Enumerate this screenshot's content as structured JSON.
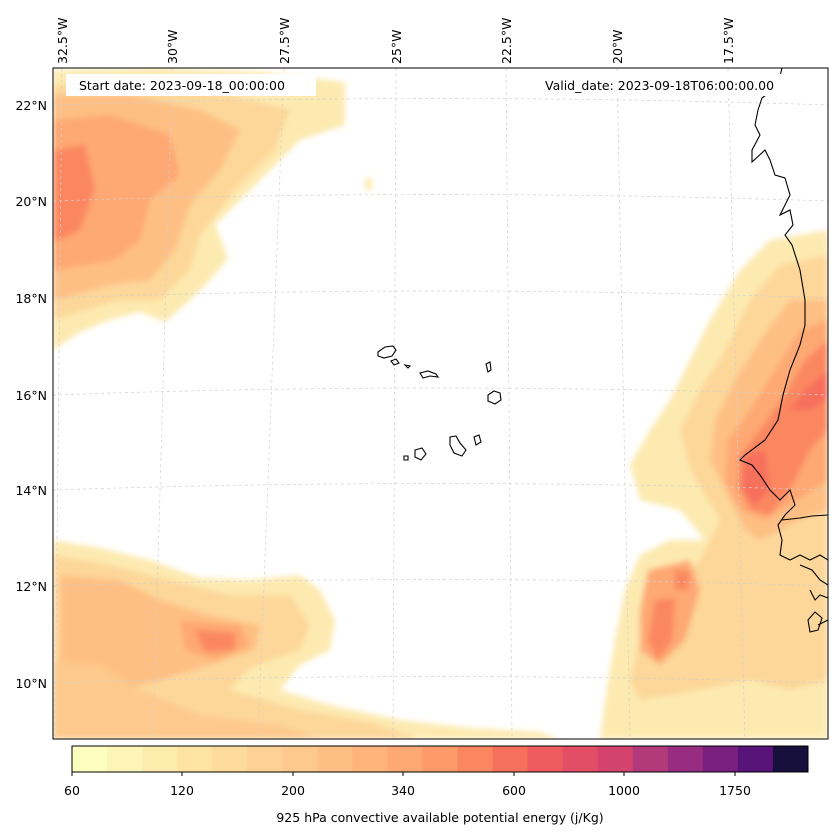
{
  "map": {
    "header": {
      "start_date": "Start date: 2023-09-18_00:00:00",
      "valid_date": "Valid_date: 2023-09-18T06:00:00.00"
    },
    "lon_labels": [
      "32.5°W",
      "30°W",
      "27.5°W",
      "25°W",
      "22.5°W",
      "20°W",
      "17.5°W"
    ],
    "lat_labels": [
      "22°N",
      "20°N",
      "18°N",
      "16°N",
      "14°N",
      "12°N",
      "10°N"
    ],
    "colorbar": {
      "label": "925 hPa convective available potential energy (j/Kg)",
      "tick_labels": [
        "60",
        "120",
        "200",
        "340",
        "600",
        "1000",
        "1750"
      ],
      "colors": [
        "#fcfdbf",
        "#fcf5b6",
        "#fdedac",
        "#fde4a3",
        "#fddb9a",
        "#fed294",
        "#fec98d",
        "#febf84",
        "#feb47b",
        "#fea873",
        "#fd9a6a",
        "#fb8761",
        "#f7705c",
        "#ee5c5f",
        "#e24e65",
        "#d3436e",
        "#b23a7b",
        "#972c80",
        "#7a2180",
        "#571378",
        "#170f3c"
      ]
    },
    "land_color": "#000000",
    "grid_color": "#cccccc"
  }
}
